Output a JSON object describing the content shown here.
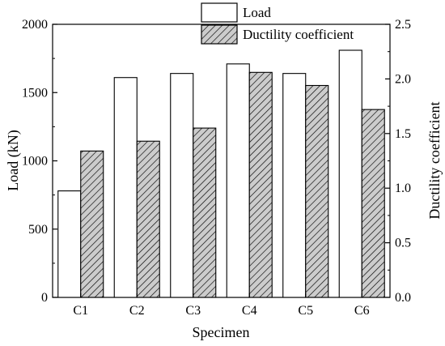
{
  "chart_data": {
    "type": "bar",
    "title": "",
    "xlabel": "Specimen",
    "categories": [
      "C1",
      "C2",
      "C3",
      "C4",
      "C5",
      "C6"
    ],
    "series": [
      {
        "name": "Load",
        "axis": "left",
        "values": [
          780,
          1610,
          1640,
          1710,
          1640,
          1810
        ],
        "fill": "#ffffff",
        "pattern": "none"
      },
      {
        "name": "Ductility coefficient",
        "axis": "right",
        "values": [
          1.34,
          1.43,
          1.55,
          2.06,
          1.94,
          1.72
        ],
        "fill": "#cccccc",
        "pattern": "diagonal-hatch"
      }
    ],
    "y_left": {
      "label": "Load (kN)",
      "range": [
        0,
        2000
      ],
      "ticks": [
        0,
        500,
        1000,
        1500,
        2000
      ],
      "tick_labels": [
        "0",
        "500",
        "1000",
        "1500",
        "2000"
      ]
    },
    "y_right": {
      "label": "Ductility coefficient",
      "range": [
        0,
        2.5
      ],
      "ticks": [
        0,
        0.5,
        1.0,
        1.5,
        2.0,
        2.5
      ],
      "tick_labels": [
        "0.0",
        "0.5",
        "1.0",
        "1.5",
        "2.0",
        "2.5"
      ]
    },
    "grid": false,
    "legend_position": "top-center"
  }
}
